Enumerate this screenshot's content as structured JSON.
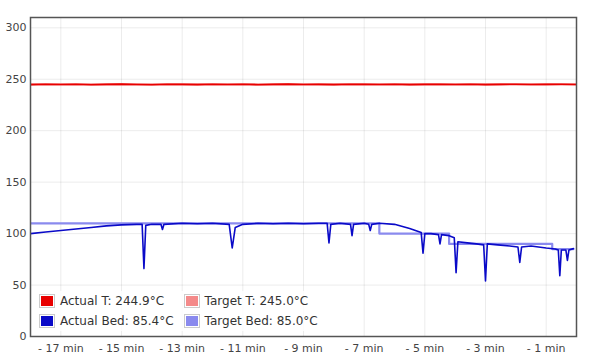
{
  "chart_data": {
    "type": "line",
    "xlim": [
      -18,
      0
    ],
    "xticks": [
      {
        "value": -17,
        "label": "- 17 min"
      },
      {
        "value": -15,
        "label": "- 15 min"
      },
      {
        "value": -13,
        "label": "- 13 min"
      },
      {
        "value": -11,
        "label": "- 11 min"
      },
      {
        "value": -9,
        "label": "- 9 min"
      },
      {
        "value": -7,
        "label": "- 7 min"
      },
      {
        "value": -5,
        "label": "- 5 min"
      },
      {
        "value": -3,
        "label": "- 3 min"
      },
      {
        "value": -1,
        "label": "- 1 min"
      }
    ],
    "ylim": [
      0,
      310
    ],
    "yticks": [
      0,
      50,
      100,
      150,
      200,
      250,
      300
    ],
    "grid": true,
    "legend": "lower left",
    "series": [
      {
        "name": "Actual T: 244.9°C",
        "color": "#e80000",
        "x": [
          -18,
          -17.5,
          -17,
          -16.5,
          -16,
          -15.5,
          -15,
          -14.5,
          -14,
          -13.5,
          -13,
          -12.5,
          -12,
          -11.5,
          -11,
          -10.5,
          -10,
          -9.5,
          -9,
          -8.5,
          -8,
          -7.5,
          -7,
          -6.5,
          -6,
          -5.5,
          -5,
          -4.5,
          -4,
          -3.5,
          -3,
          -2.5,
          -2,
          -1.5,
          -1,
          -0.5,
          0
        ],
        "values": [
          244.8,
          245.1,
          244.9,
          245.2,
          244.7,
          245,
          245.3,
          244.9,
          244.6,
          245.1,
          245,
          244.8,
          245.2,
          244.9,
          245.1,
          244.7,
          245,
          245.3,
          244.9,
          245,
          244.8,
          245.2,
          245,
          244.9,
          245.1,
          244.8,
          245,
          245.2,
          244.9,
          245.1,
          244.8,
          245,
          245.2,
          244.9,
          245,
          245.1,
          244.9
        ]
      },
      {
        "name": "Target T: 245.0°C",
        "color": "#f48a8a",
        "x": [
          -18,
          0
        ],
        "values": [
          245,
          245
        ]
      },
      {
        "name": "Actual Bed: 85.4°C",
        "color": "#0a0ac8",
        "x": [
          -18,
          -17.5,
          -17,
          -16.5,
          -16,
          -15.5,
          -15,
          -14.5,
          -14.32,
          -14.26,
          -14.2,
          -14,
          -13.7,
          -13.65,
          -13.6,
          -13,
          -12.5,
          -12,
          -11.45,
          -11.35,
          -11.25,
          -11,
          -10.5,
          -10,
          -9.5,
          -9,
          -8.5,
          -8.22,
          -8.16,
          -8.1,
          -7.8,
          -7.45,
          -7.4,
          -7.35,
          -7,
          -6.85,
          -6.8,
          -6.75,
          -6.5,
          -6,
          -5.5,
          -5.12,
          -5.06,
          -5,
          -4.8,
          -4.55,
          -4.5,
          -4.45,
          -4.2,
          -4.03,
          -3.97,
          -3.91,
          -3.6,
          -3.3,
          -3.06,
          -3.0,
          -2.94,
          -2.6,
          -2.2,
          -1.93,
          -1.87,
          -1.81,
          -1.5,
          -1.0,
          -0.7,
          -0.6,
          -0.55,
          -0.5,
          -0.35,
          -0.3,
          -0.25,
          -0.1
        ],
        "values": [
          100,
          101.5,
          103,
          104.5,
          106,
          107.5,
          108.5,
          109,
          109,
          66,
          108,
          109,
          109,
          104,
          109,
          110,
          109.5,
          110,
          109,
          86,
          106,
          109,
          110,
          109.5,
          110,
          109.5,
          110,
          110,
          91,
          109,
          110,
          109,
          98,
          109,
          110,
          109,
          103,
          109,
          110,
          109,
          105,
          101,
          81,
          100,
          100,
          99,
          90,
          99,
          98,
          96,
          62,
          92,
          91,
          90,
          89,
          54,
          90,
          89,
          88,
          87,
          72,
          87,
          88,
          86,
          85,
          84,
          59,
          84,
          84,
          74,
          84,
          85.4
        ]
      },
      {
        "name": "Target Bed: 85.0°C",
        "color": "#8a8aee",
        "x": [
          -18,
          -6.5,
          -6.5,
          -4.2,
          -4.2,
          -0.8,
          -0.8,
          -0.1
        ],
        "values": [
          110,
          110,
          100,
          100,
          90,
          90,
          85,
          85
        ]
      }
    ]
  }
}
